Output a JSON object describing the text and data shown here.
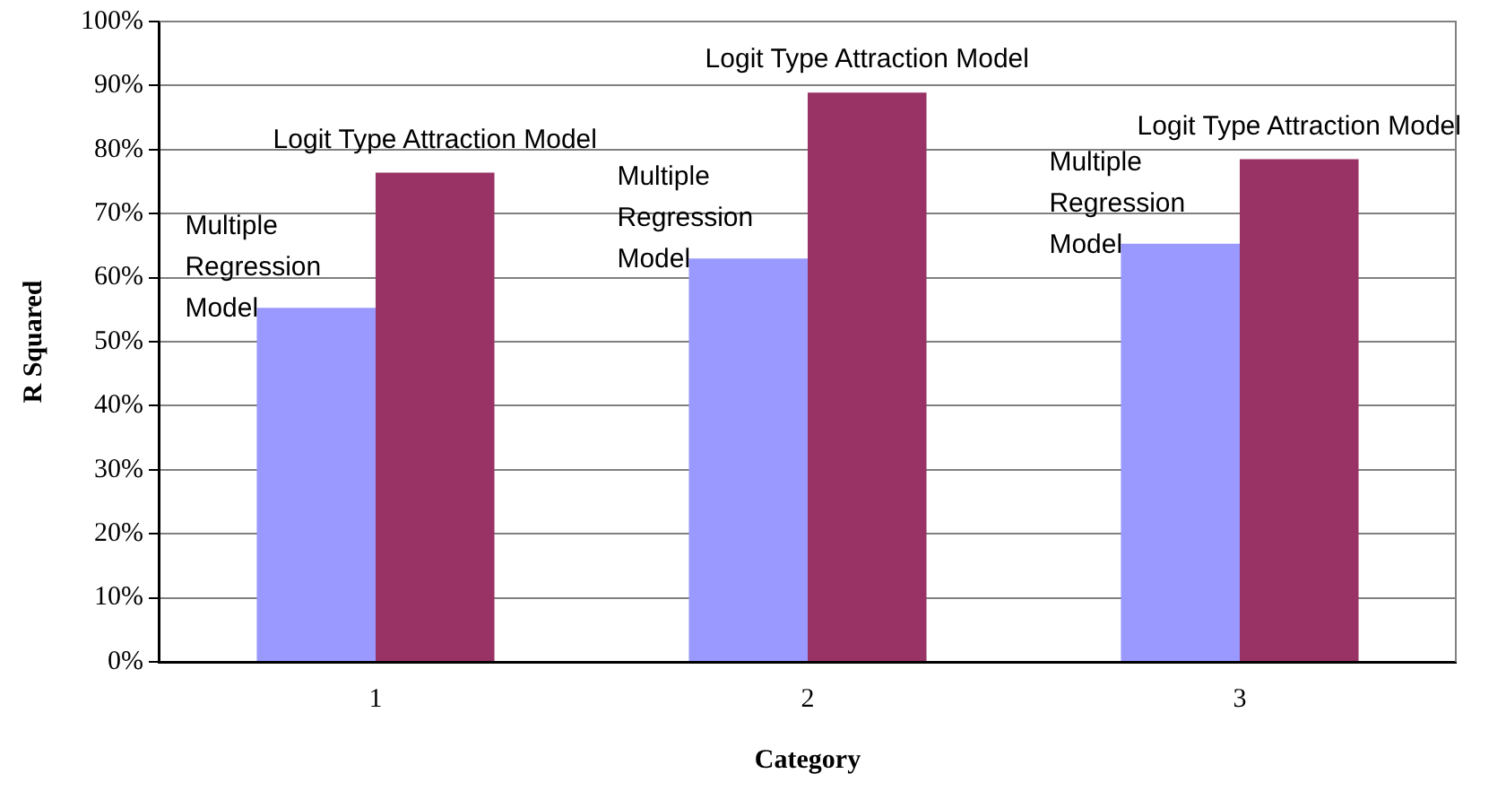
{
  "chart_data": {
    "type": "bar",
    "xlabel": "Category",
    "ylabel": "R Squared",
    "categories": [
      "1",
      "2",
      "3"
    ],
    "series": [
      {
        "name": "Multiple Regression Model",
        "color": "#9999ff",
        "values": [
          55.3,
          63.0,
          65.3
        ]
      },
      {
        "name": "Logit Type Attraction Model",
        "color": "#993366",
        "values": [
          76.4,
          88.9,
          78.5
        ]
      }
    ],
    "ylim": [
      0,
      100
    ],
    "yticks": [
      {
        "value": 0,
        "label": "0%"
      },
      {
        "value": 10,
        "label": "10%"
      },
      {
        "value": 20,
        "label": "20%"
      },
      {
        "value": 30,
        "label": "30%"
      },
      {
        "value": 40,
        "label": "40%"
      },
      {
        "value": 50,
        "label": "50%"
      },
      {
        "value": 60,
        "label": "60%"
      },
      {
        "value": 70,
        "label": "70%"
      },
      {
        "value": 80,
        "label": "80%"
      },
      {
        "value": 90,
        "label": "90%"
      },
      {
        "value": 100,
        "label": "100%"
      }
    ],
    "grid": "y",
    "legend": false
  }
}
